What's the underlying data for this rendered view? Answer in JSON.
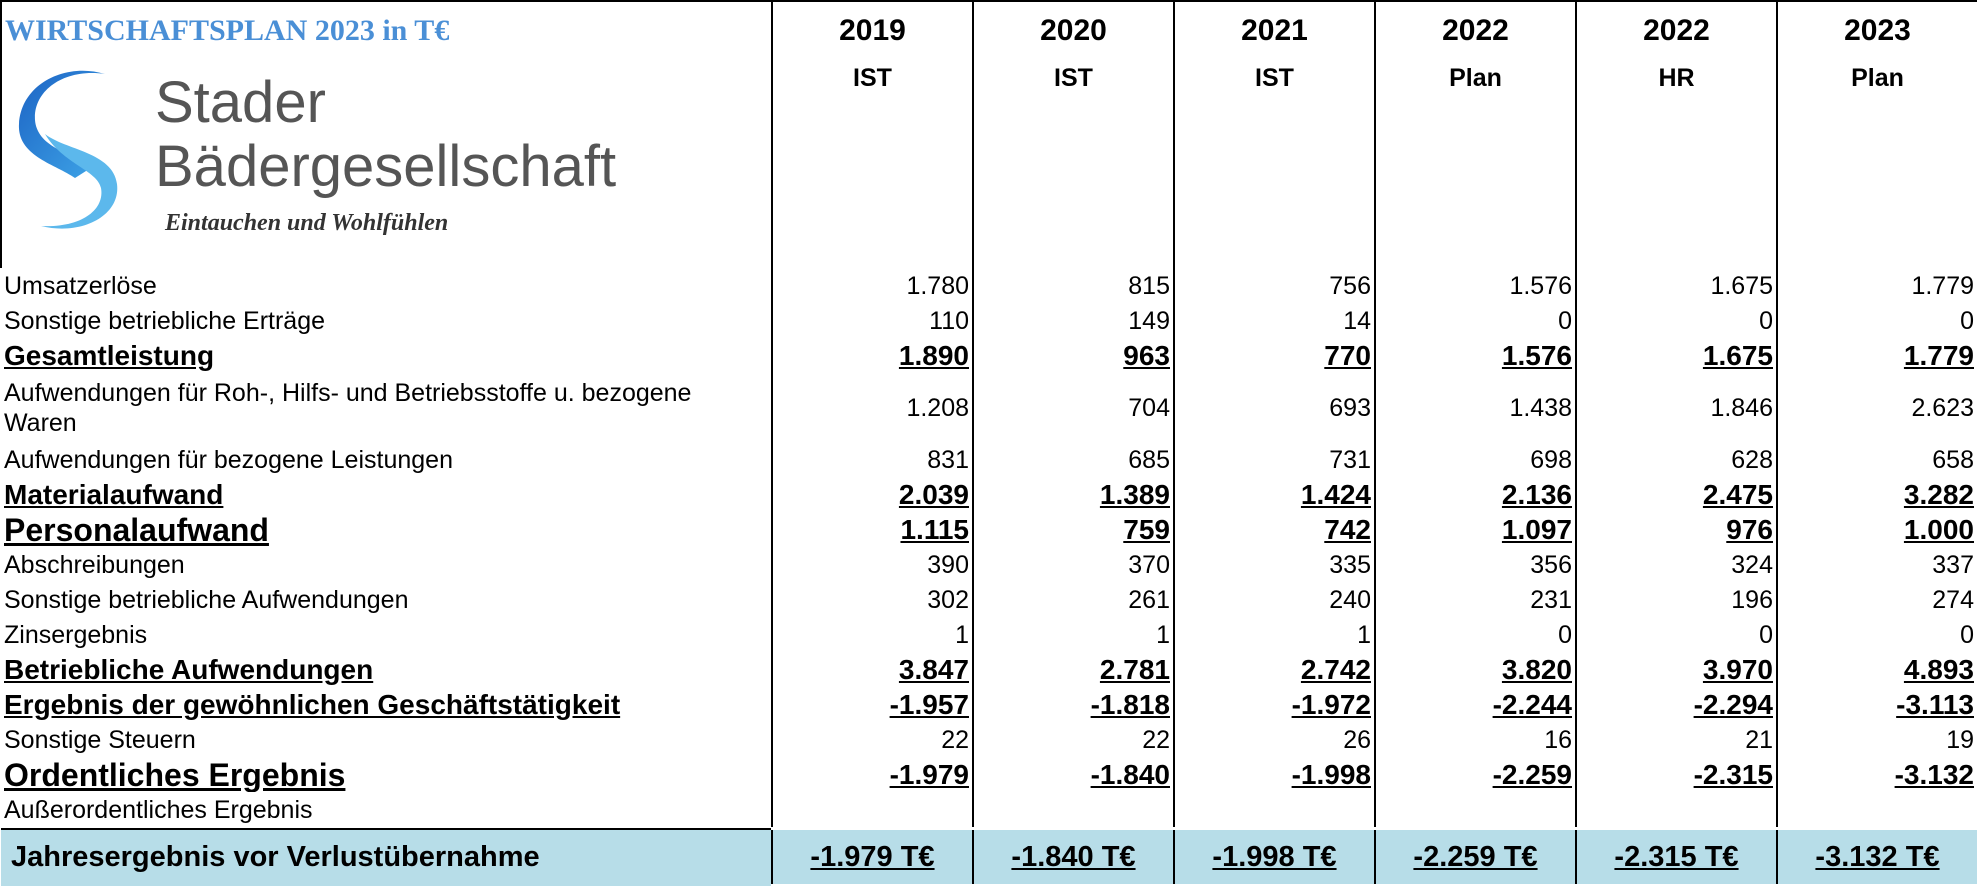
{
  "header": {
    "title": "WIRTSCHAFTSPLAN 2023 in T€",
    "logo": {
      "line1": "Stader",
      "line2": "Bädergesellschaft",
      "slogan": "Eintauchen und Wohlfühlen"
    },
    "columns": [
      {
        "year": "2019",
        "kind": "IST"
      },
      {
        "year": "2020",
        "kind": "IST"
      },
      {
        "year": "2021",
        "kind": "IST"
      },
      {
        "year": "2022",
        "kind": "Plan"
      },
      {
        "year": "2022",
        "kind": "HR"
      },
      {
        "year": "2023",
        "kind": "Plan"
      }
    ]
  },
  "rows": [
    {
      "label": "Umsatzerlöse",
      "values": [
        "1.780",
        "815",
        "756",
        "1.576",
        "1.675",
        "1.779"
      ]
    },
    {
      "label": "Sonstige betriebliche Erträge",
      "values": [
        "110",
        "149",
        "14",
        "0",
        "0",
        "0"
      ]
    },
    {
      "label": "Gesamtleistung",
      "values": [
        "1.890",
        "963",
        "770",
        "1.576",
        "1.675",
        "1.779"
      ],
      "bold": true
    },
    {
      "label": "Aufwendungen für Roh-, Hilfs- und Betriebsstoffe u. bezogene Waren",
      "values": [
        "1.208",
        "704",
        "693",
        "1.438",
        "1.846",
        "2.623"
      ],
      "double": true
    },
    {
      "label": "Aufwendungen für bezogene Leistungen",
      "values": [
        "831",
        "685",
        "731",
        "698",
        "628",
        "658"
      ]
    },
    {
      "label": "Materialaufwand",
      "values": [
        "2.039",
        "1.389",
        "1.424",
        "2.136",
        "2.475",
        "3.282"
      ],
      "bold": true
    },
    {
      "label": "Personalaufwand",
      "values": [
        "1.115",
        "759",
        "742",
        "1.097",
        "976",
        "1.000"
      ],
      "bold": true,
      "large": true
    },
    {
      "label": "Abschreibungen",
      "values": [
        "390",
        "370",
        "335",
        "356",
        "324",
        "337"
      ]
    },
    {
      "label": "Sonstige betriebliche Aufwendungen",
      "values": [
        "302",
        "261",
        "240",
        "231",
        "196",
        "274"
      ]
    },
    {
      "label": "Zinsergebnis",
      "values": [
        "1",
        "1",
        "1",
        "0",
        "0",
        "0"
      ]
    },
    {
      "label": "Betriebliche Aufwendungen",
      "values": [
        "3.847",
        "2.781",
        "2.742",
        "3.820",
        "3.970",
        "4.893"
      ],
      "bold": true
    },
    {
      "label": "Ergebnis der gewöhnlichen Geschäftstätigkeit",
      "values": [
        "-1.957",
        "-1.818",
        "-1.972",
        "-2.244",
        "-2.294",
        "-3.113"
      ],
      "bold": true
    },
    {
      "label": "Sonstige Steuern",
      "values": [
        "22",
        "22",
        "26",
        "16",
        "21",
        "19"
      ]
    },
    {
      "label": "Ordentliches Ergebnis",
      "values": [
        "-1.979",
        "-1.840",
        "-1.998",
        "-2.259",
        "-2.315",
        "-3.132"
      ],
      "bold": true,
      "large": true
    },
    {
      "label": "Außerordentliches Ergebnis",
      "values": []
    }
  ],
  "total": {
    "label": "Jahresergebnis vor Verlustübernahme",
    "values": [
      "-1.979 T€",
      "-1.840 T€",
      "-1.998 T€",
      "-2.259 T€",
      "-2.315 T€",
      "-3.132 T€"
    ]
  }
}
